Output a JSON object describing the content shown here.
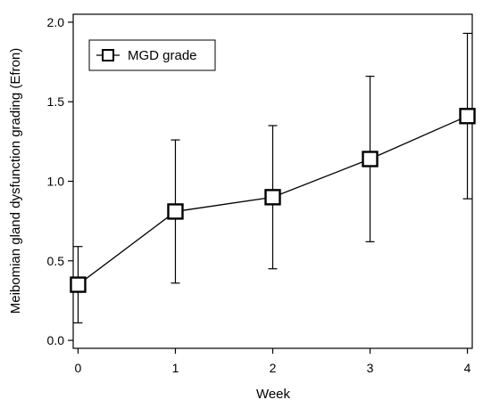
{
  "chart_data": {
    "type": "line",
    "title": "",
    "xlabel": "Week",
    "ylabel": "Meibomian gland dysfunction grading (Efron)",
    "x": [
      0,
      1,
      2,
      3,
      4
    ],
    "xlim": [
      -0.05,
      4.05
    ],
    "ylim": [
      -0.05,
      2.05
    ],
    "xticks": [
      "0",
      "1",
      "2",
      "3",
      "4"
    ],
    "yticks": [
      "0.0",
      "0.5",
      "1.0",
      "1.5",
      "2.0"
    ],
    "grid": false,
    "legend_position": "top-left",
    "series": [
      {
        "name": "MGD grade",
        "values": [
          0.35,
          0.81,
          0.9,
          1.14,
          1.41
        ],
        "error_upper": [
          0.59,
          1.26,
          1.35,
          1.66,
          1.93
        ],
        "error_lower": [
          0.11,
          0.36,
          0.45,
          0.62,
          0.89
        ],
        "marker": "open-square",
        "color": "#000000"
      }
    ]
  }
}
